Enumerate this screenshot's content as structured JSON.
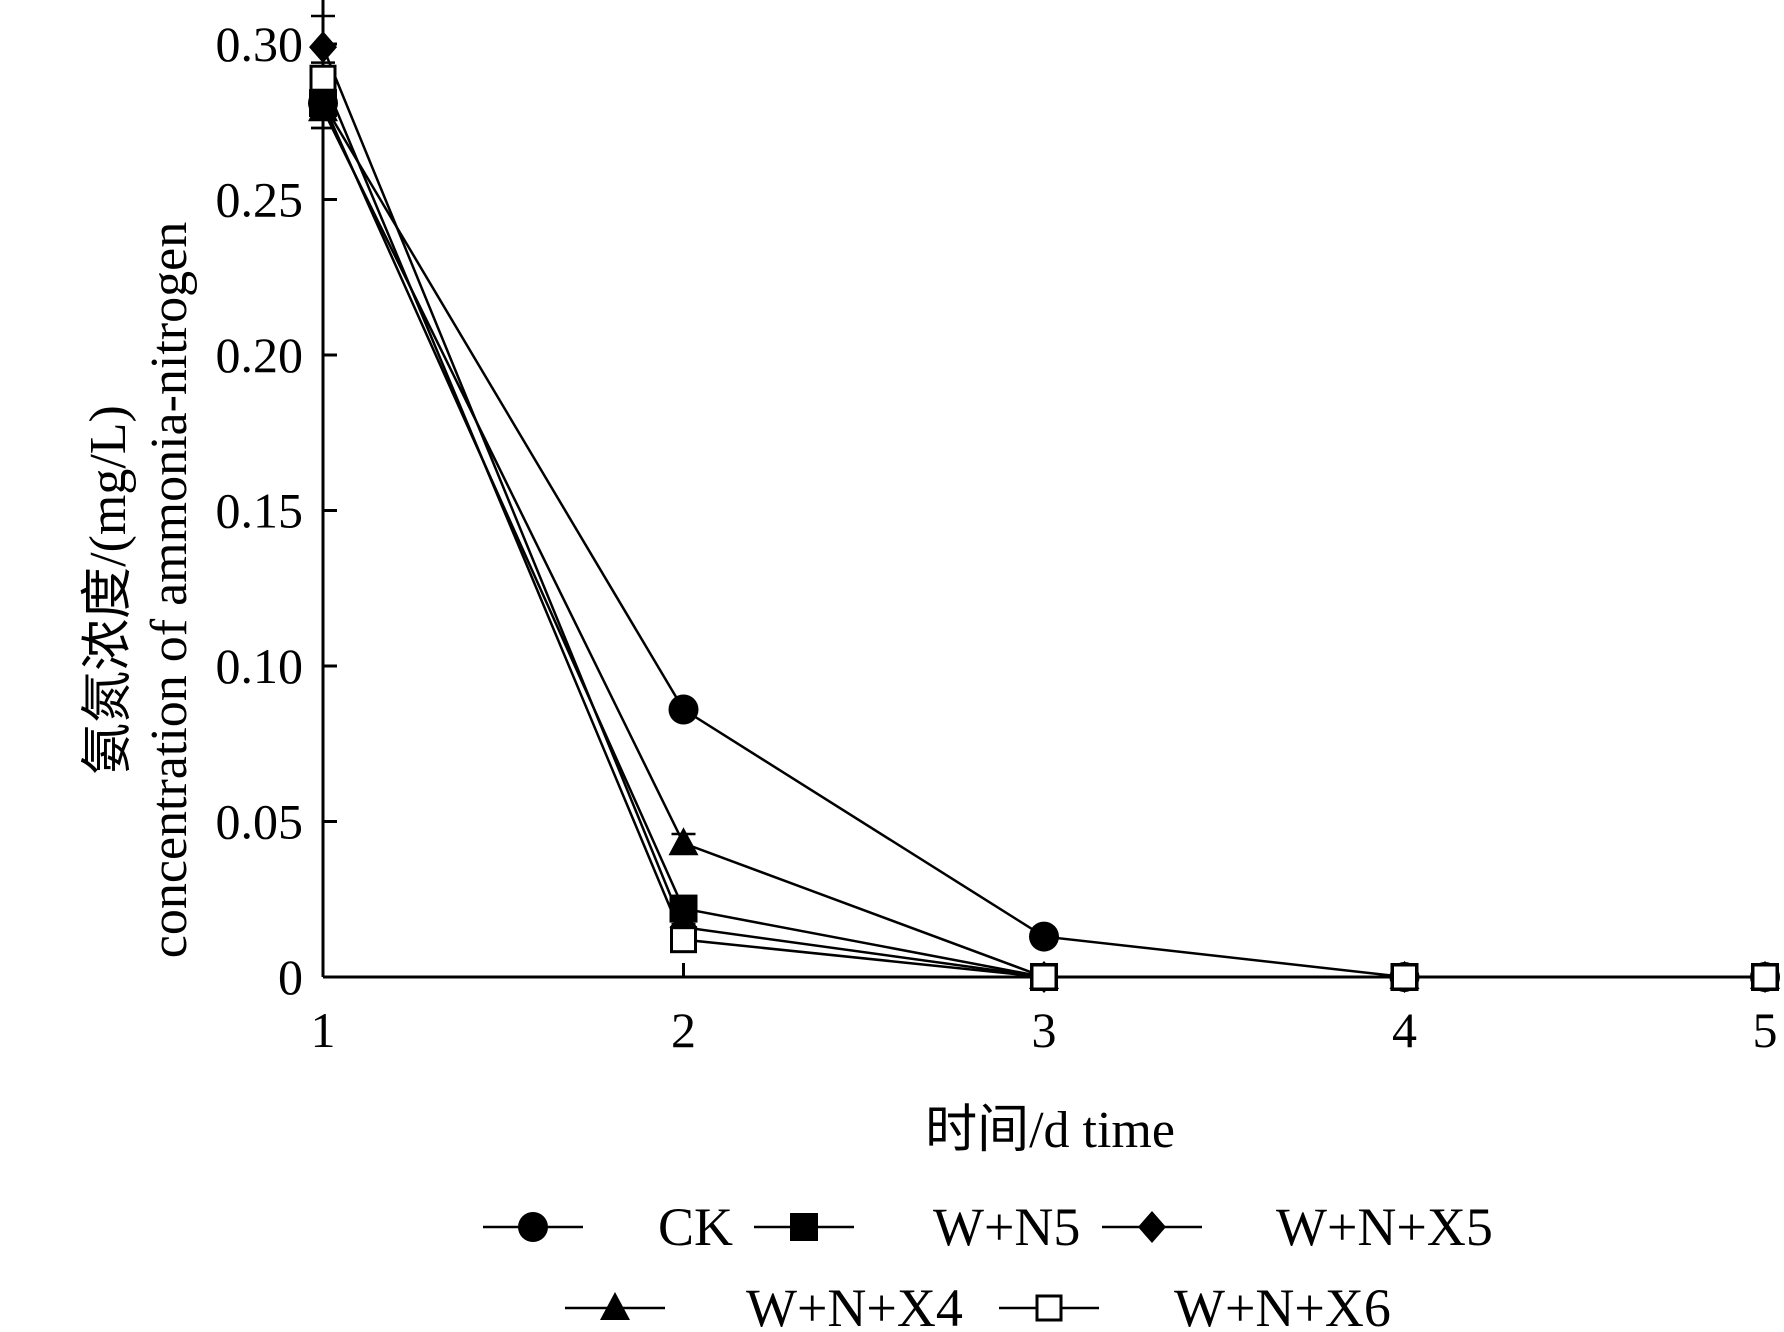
{
  "chart_data": {
    "type": "line",
    "x": [
      1,
      2,
      3,
      4,
      5
    ],
    "xlim": [
      1,
      5
    ],
    "ylim": [
      0,
      0.3
    ],
    "xticks": [
      "1",
      "2",
      "3",
      "4",
      "5"
    ],
    "yticks": [
      "0",
      "0.05",
      "0.10",
      "0.15",
      "0.20",
      "0.25",
      "0.30"
    ],
    "xlabel": "时间/d time",
    "ylabel_line1": "氨氮浓度/(mg/L)",
    "ylabel_line2": "concentration of ammonia-nitrogen",
    "legend_position": "bottom",
    "grid": false,
    "series": [
      {
        "name": "CK",
        "marker": "filled-circle",
        "values": [
          0.281,
          0.086,
          0.013,
          0,
          0
        ],
        "err": [
          0.004,
          0.001,
          0.001,
          0,
          0
        ]
      },
      {
        "name": "W+N5",
        "marker": "filled-square",
        "values": [
          0.281,
          0.022,
          0,
          0,
          0
        ],
        "err": [
          0.008,
          0.002,
          0,
          0,
          0
        ]
      },
      {
        "name": "W+N+X5",
        "marker": "filled-diamond",
        "values": [
          0.299,
          0.016,
          0,
          0,
          0
        ],
        "err": [
          0.01,
          0.001,
          0,
          0,
          0
        ]
      },
      {
        "name": "W+N+X4",
        "marker": "filled-triangle",
        "values": [
          0.279,
          0.043,
          0,
          0,
          0
        ],
        "err": [
          0.006,
          0.003,
          0,
          0,
          0
        ]
      },
      {
        "name": "W+N+X6",
        "marker": "open-square",
        "values": [
          0.289,
          0.012,
          0,
          0,
          0
        ],
        "err": [
          0.005,
          0.001,
          0,
          0,
          0
        ]
      }
    ]
  }
}
